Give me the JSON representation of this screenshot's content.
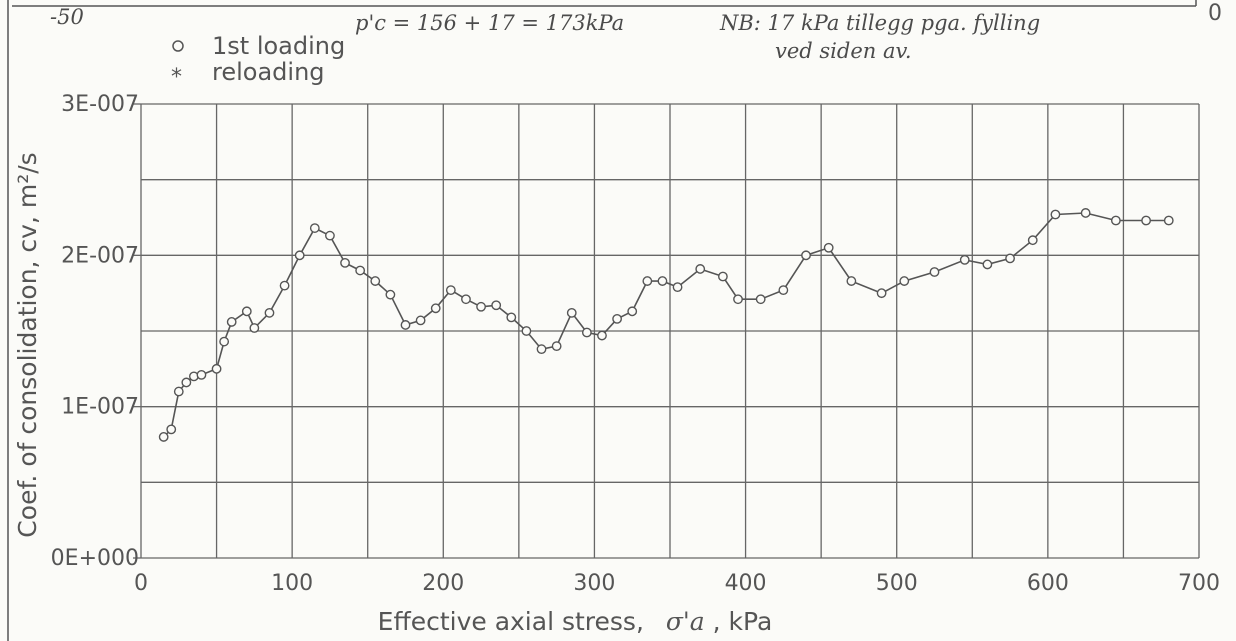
{
  "chart_data": {
    "type": "line",
    "xlabel": "Effective axial stress,",
    "xlabel_symbol": "σ'a",
    "xlabel_unit": ", kPa",
    "ylabel": "Coef. of consolidation, cv, m²/s",
    "xlim": [
      0,
      700
    ],
    "ylim": [
      0,
      3e-07
    ],
    "x_ticks": [
      0,
      100,
      200,
      300,
      400,
      500,
      600,
      700
    ],
    "x_tick_labels": [
      "0",
      "100",
      "200",
      "300",
      "400",
      "500",
      "600",
      "700"
    ],
    "y_ticks": [
      0,
      1e-07,
      2e-07,
      3e-07
    ],
    "y_tick_labels": [
      "0E+000",
      "1E-007",
      "2E-007",
      "3E-007"
    ],
    "grid": true,
    "legend_position": "top-left",
    "series": [
      {
        "name": "1st loading",
        "marker": "circle",
        "color": "#555555",
        "x": [
          15,
          20,
          25,
          30,
          35,
          40,
          50,
          55,
          60,
          70,
          75,
          85,
          95,
          105,
          115,
          125,
          135,
          145,
          155,
          165,
          175,
          185,
          195,
          205,
          215,
          225,
          235,
          245,
          255,
          265,
          275,
          285,
          295,
          305,
          315,
          325,
          335,
          345,
          355,
          370,
          385,
          395,
          410,
          425,
          440,
          455,
          470,
          490,
          505,
          525,
          545,
          560,
          575,
          590,
          605,
          625,
          645,
          665,
          680
        ],
        "y": [
          8e-08,
          8.5e-08,
          1.1e-07,
          1.16e-07,
          1.2e-07,
          1.21e-07,
          1.25e-07,
          1.43e-07,
          1.56e-07,
          1.63e-07,
          1.52e-07,
          1.62e-07,
          1.8e-07,
          2e-07,
          2.18e-07,
          2.13e-07,
          1.95e-07,
          1.9e-07,
          1.83e-07,
          1.74e-07,
          1.54e-07,
          1.57e-07,
          1.65e-07,
          1.77e-07,
          1.71e-07,
          1.66e-07,
          1.67e-07,
          1.59e-07,
          1.5e-07,
          1.38e-07,
          1.4e-07,
          1.62e-07,
          1.49e-07,
          1.47e-07,
          1.58e-07,
          1.63e-07,
          1.83e-07,
          1.83e-07,
          1.79e-07,
          1.91e-07,
          1.86e-07,
          1.71e-07,
          1.71e-07,
          1.77e-07,
          2e-07,
          2.05e-07,
          1.83e-07,
          1.75e-07,
          1.83e-07,
          1.89e-07,
          1.97e-07,
          1.94e-07,
          1.98e-07,
          2.1e-07,
          2.27e-07,
          2.28e-07,
          2.23e-07,
          2.23e-07,
          2.23e-07
        ]
      },
      {
        "name": "reloading",
        "marker": "star",
        "color": "#555555",
        "x": [],
        "y": []
      }
    ],
    "right_axis_tick_label": "0",
    "annotations": {
      "top_left_label": "-50",
      "handwritten_formula": "p'c = 156 + 17 = 173kPa",
      "handwritten_note_line1": "NB: 17 kPa tillegg pga. fylling",
      "handwritten_note_line2": "ved siden av."
    }
  }
}
